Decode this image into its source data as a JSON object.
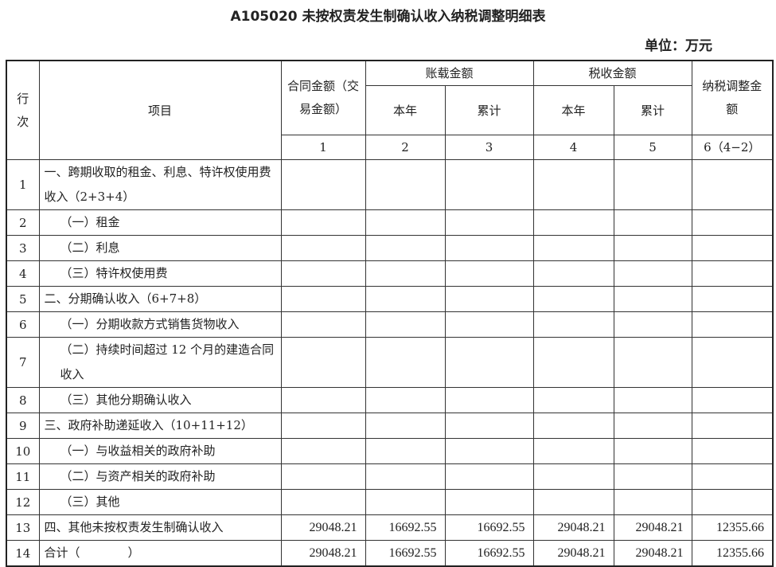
{
  "title": "A105020 未按权责发生制确认收入纳税调整明细表",
  "unit": "单位：万元",
  "header": {
    "row_no": "行次",
    "item": "项目",
    "contract": "合同金额（交易金额）",
    "book": "账载金额",
    "tax": "税收金额",
    "adjust": "纳税调整金额",
    "this_year": "本年",
    "cumulative": "累计",
    "col_nums": [
      "1",
      "2",
      "3",
      "4",
      "5",
      "6（4−2）"
    ]
  },
  "rows": [
    {
      "no": "1",
      "item": "一、跨期收取的租金、利息、特许权使用费收入（2+3+4）",
      "indent": false,
      "values": [
        "",
        "",
        "",
        "",
        "",
        ""
      ]
    },
    {
      "no": "2",
      "item": "（一）租金",
      "indent": true,
      "values": [
        "",
        "",
        "",
        "",
        "",
        ""
      ]
    },
    {
      "no": "3",
      "item": "（二）利息",
      "indent": true,
      "values": [
        "",
        "",
        "",
        "",
        "",
        ""
      ]
    },
    {
      "no": "4",
      "item": "（三）特许权使用费",
      "indent": true,
      "values": [
        "",
        "",
        "",
        "",
        "",
        ""
      ]
    },
    {
      "no": "5",
      "item": "二、分期确认收入（6+7+8）",
      "indent": false,
      "values": [
        "",
        "",
        "",
        "",
        "",
        ""
      ]
    },
    {
      "no": "6",
      "item": "（一）分期收款方式销售货物收入",
      "indent": true,
      "values": [
        "",
        "",
        "",
        "",
        "",
        ""
      ]
    },
    {
      "no": "7",
      "item": "（二）持续时间超过 12 个月的建造合同收入",
      "indent": true,
      "values": [
        "",
        "",
        "",
        "",
        "",
        ""
      ]
    },
    {
      "no": "8",
      "item": "（三）其他分期确认收入",
      "indent": true,
      "values": [
        "",
        "",
        "",
        "",
        "",
        ""
      ]
    },
    {
      "no": "9",
      "item": "三、政府补助递延收入（10+11+12）",
      "indent": false,
      "values": [
        "",
        "",
        "",
        "",
        "",
        ""
      ]
    },
    {
      "no": "10",
      "item": "（一）与收益相关的政府补助",
      "indent": true,
      "values": [
        "",
        "",
        "",
        "",
        "",
        ""
      ]
    },
    {
      "no": "11",
      "item": "（二）与资产相关的政府补助",
      "indent": true,
      "values": [
        "",
        "",
        "",
        "",
        "",
        ""
      ]
    },
    {
      "no": "12",
      "item": "（三）其他",
      "indent": true,
      "values": [
        "",
        "",
        "",
        "",
        "",
        ""
      ]
    },
    {
      "no": "13",
      "item": "四、其他未按权责发生制确认收入",
      "indent": false,
      "values": [
        "29048.21",
        "16692.55",
        "16692.55",
        "29048.21",
        "29048.21",
        "12355.66"
      ]
    },
    {
      "no": "14",
      "item": "合计（　　　　）",
      "indent": false,
      "values": [
        "29048.21",
        "16692.55",
        "16692.55",
        "29048.21",
        "29048.21",
        "12355.66"
      ]
    }
  ]
}
